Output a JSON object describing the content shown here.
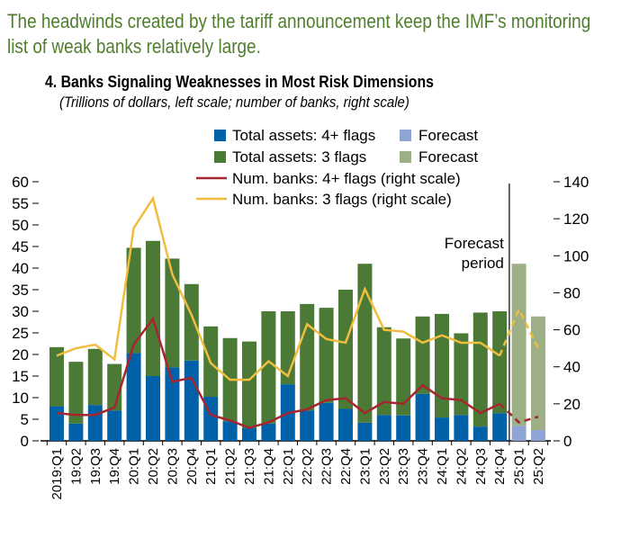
{
  "headline": "The headwinds created by the tariff announcement keep the IMF’s monitoring list of weak banks relatively large.",
  "chart_data": {
    "type": "bar",
    "title": "4. Banks Signaling Weaknesses in Most Risk Dimensions",
    "subtitle": "(Trillions of dollars, left scale; number of banks, right scale)",
    "categories": [
      "2019:Q1",
      "19:Q2",
      "19:Q3",
      "19:Q4",
      "20:Q1",
      "20:Q2",
      "20:Q3",
      "20:Q4",
      "21:Q1",
      "21:Q2",
      "21:Q3",
      "21:Q4",
      "22:Q1",
      "22:Q2",
      "22:Q3",
      "22:Q4",
      "23:Q1",
      "23:Q2",
      "23:Q3",
      "23:Q4",
      "24:Q1",
      "24:Q2",
      "24:Q3",
      "24:Q4",
      "25:Q1",
      "25:Q2"
    ],
    "forecast_from_index": 24,
    "forecast_annotation": "Forecast\nperiod",
    "left_axis": {
      "ylim": [
        0,
        60
      ],
      "ticks": [
        0,
        5,
        10,
        15,
        20,
        25,
        30,
        35,
        40,
        45,
        50,
        55,
        60
      ]
    },
    "right_axis": {
      "ylim": [
        0,
        140
      ],
      "ticks": [
        0,
        20,
        40,
        60,
        80,
        100,
        120,
        140
      ]
    },
    "series": [
      {
        "name": "Total assets: 4+ flags",
        "kind": "bar",
        "axis": "left",
        "color": "#0060a8",
        "forecast_color": "#8fa3d4",
        "values": [
          8,
          4,
          8.3,
          7,
          20.3,
          15,
          17,
          18.6,
          10.2,
          4.5,
          3,
          4,
          13.1,
          7,
          8.8,
          7.4,
          4.2,
          6,
          5.9,
          10.9,
          5.4,
          6,
          3.3,
          6.4,
          3.5,
          2.5
        ]
      },
      {
        "name": "Total assets: 3 flags",
        "kind": "bar",
        "axis": "left",
        "color": "#4a7a36",
        "forecast_color": "#9caf85",
        "values": [
          13.7,
          14.3,
          13,
          10.8,
          24.4,
          31.3,
          25.2,
          17.7,
          16.3,
          19.3,
          20,
          26,
          16.9,
          24.7,
          22,
          27.6,
          36.8,
          20.3,
          17.8,
          17.9,
          24,
          18.9,
          26.4,
          23.6,
          37.5,
          26.3
        ]
      },
      {
        "name": "Num. banks: 4+ flags (right scale)",
        "kind": "line",
        "axis": "right",
        "color": "#a5262e",
        "values": [
          15,
          14,
          14,
          18,
          52,
          66,
          32,
          34,
          14,
          11,
          7,
          10,
          15,
          17,
          22,
          23,
          15,
          21,
          20,
          30,
          23,
          22,
          15,
          20,
          10,
          13
        ]
      },
      {
        "name": "Num. banks: 3 flags (right scale)",
        "kind": "line",
        "axis": "right",
        "color": "#f0bd3f",
        "values": [
          46,
          50,
          52,
          44,
          115,
          131,
          90,
          68,
          42,
          33,
          33,
          43,
          35,
          63,
          55,
          53,
          82,
          60,
          59,
          53,
          57,
          53,
          53,
          46,
          71,
          50
        ]
      }
    ],
    "legend": {
      "forecast_label": "Forecast",
      "placement": "top"
    }
  }
}
